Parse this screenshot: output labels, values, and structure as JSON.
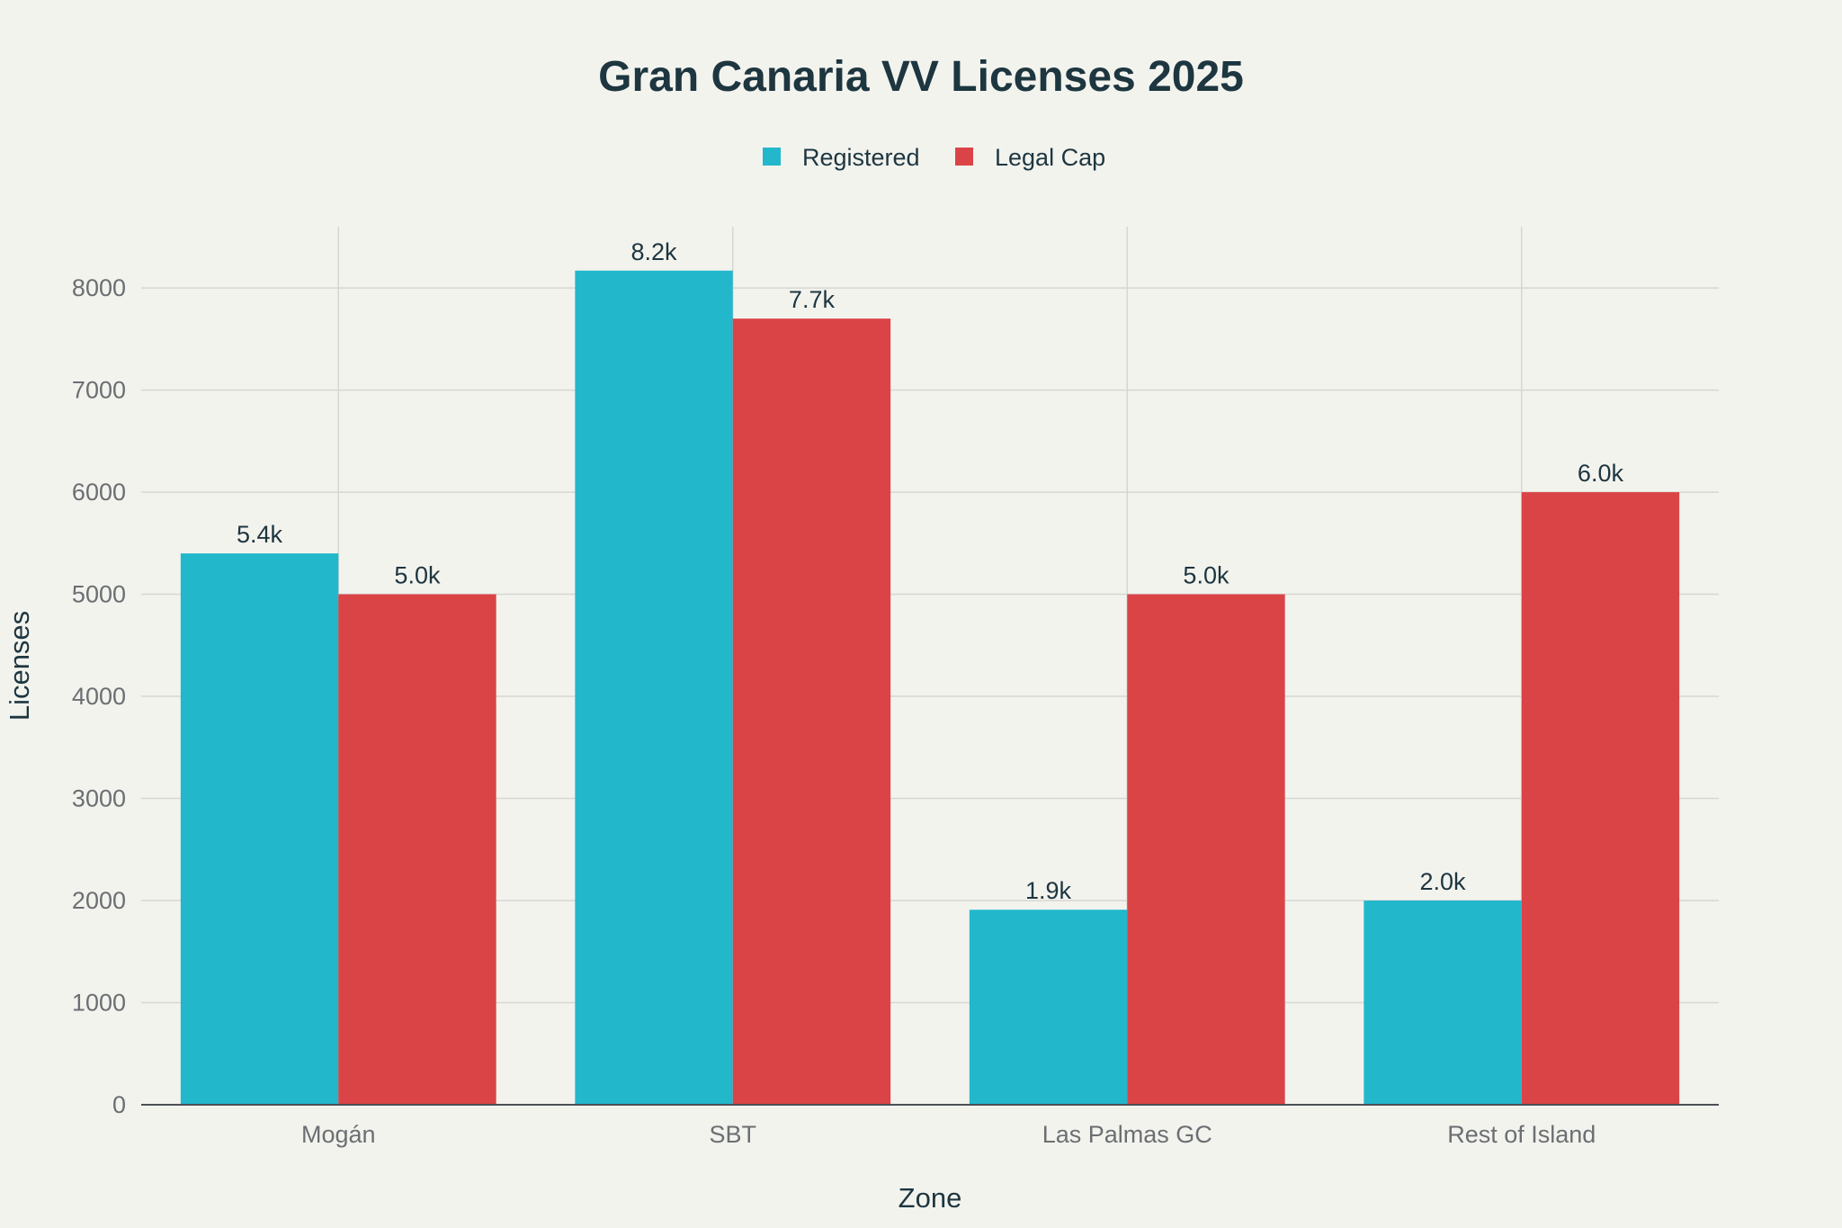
{
  "chart_data": {
    "type": "bar",
    "title": "Gran Canaria VV Licenses 2025",
    "xlabel": "Zone",
    "ylabel": "Licenses",
    "categories": [
      "Mogán",
      "SBT",
      "Las Palmas GC",
      "Rest of Island"
    ],
    "series": [
      {
        "name": "Registered",
        "color": "#22b7cb",
        "values": [
          5400,
          8170,
          1910,
          2000
        ],
        "labels": [
          "5.4k",
          "8.2k",
          "1.9k",
          "2.0k"
        ]
      },
      {
        "name": "Legal Cap",
        "color": "#db4446",
        "values": [
          5000,
          7700,
          5000,
          6000
        ],
        "labels": [
          "5.0k",
          "7.7k",
          "5.0k",
          "6.0k"
        ]
      }
    ],
    "ylim": [
      0,
      8600
    ],
    "yticks": [
      0,
      1000,
      2000,
      3000,
      4000,
      5000,
      6000,
      7000,
      8000
    ],
    "grid": true,
    "legend_position": "top-center"
  }
}
